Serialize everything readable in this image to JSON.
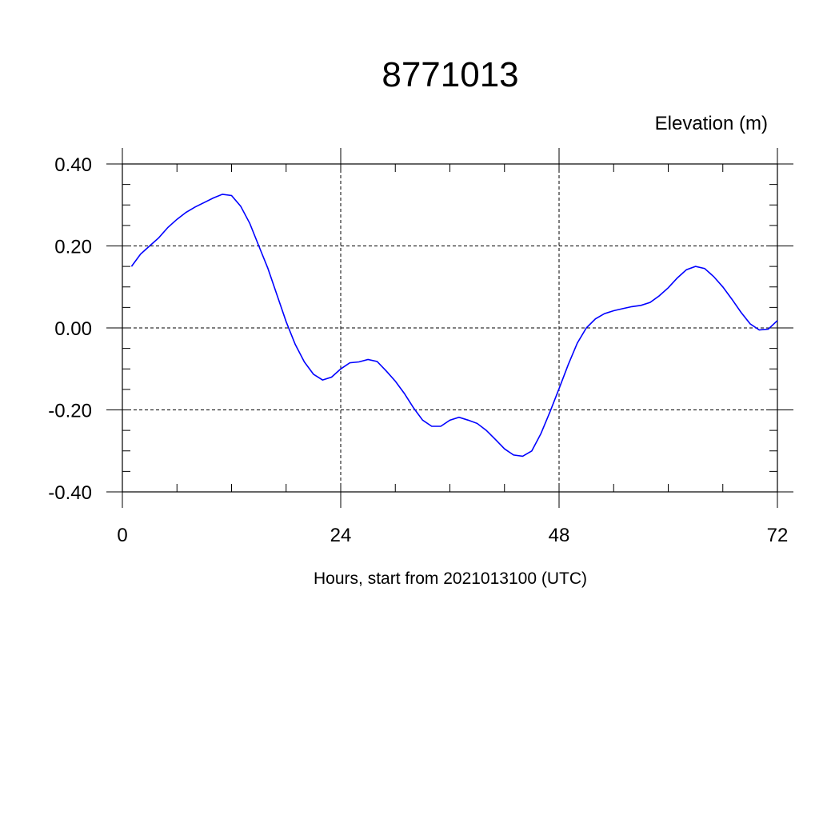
{
  "chart_data": {
    "type": "line",
    "title": "8771013",
    "ylabel": "Elevation (m)",
    "xlabel": "Hours, start from 2021013100 (UTC)",
    "xlim": [
      0,
      72
    ],
    "ylim": [
      -0.4,
      0.4
    ],
    "x_ticks": [
      0,
      24,
      48,
      72
    ],
    "x_tick_labels": [
      "0",
      "24",
      "48",
      "72"
    ],
    "y_ticks": [
      0.4,
      0.2,
      0.0,
      -0.2,
      -0.4
    ],
    "y_tick_labels": [
      "0.40",
      "0.20",
      "0.00",
      "-0.20",
      "-0.40"
    ],
    "grid": "dashed",
    "line_color": "#0000ff",
    "series": [
      {
        "x": [
          1,
          2,
          3,
          4,
          5,
          6,
          7,
          8,
          9,
          10,
          11,
          12,
          13,
          14,
          15,
          16,
          17,
          18,
          19,
          20,
          21,
          22,
          23,
          24,
          25,
          26,
          27,
          28,
          29,
          30,
          31,
          32,
          33,
          34,
          35,
          36,
          37,
          38,
          39,
          40,
          41,
          42,
          43,
          44,
          45,
          46,
          47,
          48,
          49,
          50,
          51,
          52,
          53,
          54,
          55,
          56,
          57,
          58,
          59,
          60,
          61,
          62,
          63,
          64,
          65,
          66,
          67,
          68,
          69,
          70,
          71,
          72
        ],
        "y": [
          0.15,
          0.18,
          0.2,
          0.22,
          0.245,
          0.265,
          0.282,
          0.295,
          0.306,
          0.317,
          0.326,
          0.323,
          0.297,
          0.255,
          0.2,
          0.145,
          0.08,
          0.015,
          -0.04,
          -0.083,
          -0.113,
          -0.127,
          -0.12,
          -0.1,
          -0.085,
          -0.083,
          -0.077,
          -0.082,
          -0.105,
          -0.13,
          -0.16,
          -0.195,
          -0.225,
          -0.24,
          -0.24,
          -0.225,
          -0.218,
          -0.225,
          -0.233,
          -0.25,
          -0.272,
          -0.295,
          -0.31,
          -0.313,
          -0.3,
          -0.258,
          -0.205,
          -0.148,
          -0.09,
          -0.037,
          0.0,
          0.022,
          0.035,
          0.042,
          0.047,
          0.052,
          0.055,
          0.062,
          0.078,
          0.098,
          0.122,
          0.142,
          0.15,
          0.145,
          0.125,
          0.1,
          0.07,
          0.038,
          0.01,
          -0.005,
          -0.003,
          0.018
        ]
      }
    ]
  }
}
